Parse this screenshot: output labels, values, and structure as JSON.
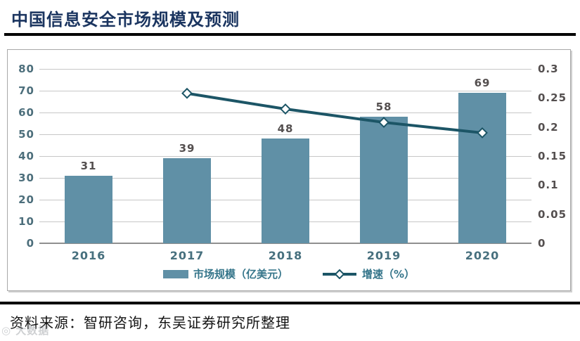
{
  "header": {
    "title": "中国信息安全市场规模及预测"
  },
  "chart_data": {
    "type": "bar+line",
    "categories": [
      "2016",
      "2017",
      "2018",
      "2019",
      "2020"
    ],
    "series": [
      {
        "name": "市场规模（亿美元）",
        "type": "bar",
        "axis": "left",
        "values": [
          31,
          39,
          48,
          58,
          69
        ],
        "data_labels": [
          "31",
          "39",
          "48",
          "58",
          "69"
        ]
      },
      {
        "name": "增速（%）",
        "type": "line",
        "axis": "right",
        "values": [
          null,
          0.258,
          0.231,
          0.208,
          0.19
        ]
      }
    ],
    "left_axis": {
      "min": 0,
      "max": 80,
      "step": 10,
      "ticks": [
        "0",
        "10",
        "20",
        "30",
        "40",
        "50",
        "60",
        "70",
        "80"
      ]
    },
    "right_axis": {
      "min": 0,
      "max": 0.3,
      "step": 0.05,
      "ticks": [
        "0",
        "0.05",
        "0.1",
        "0.15",
        "0.2",
        "0.25",
        "0.3"
      ]
    },
    "title": "",
    "xlabel": "",
    "ylabel": "",
    "grid": true,
    "legend_position": "bottom"
  },
  "colors": {
    "bar_fill": "#6090a6",
    "line_stroke": "#1c5566",
    "marker_fill": "#ffffff",
    "title_text": "#1b3560",
    "axis_text_teal": "#47707e",
    "value_text": "#544f4f",
    "legend_text": "#35758a",
    "gridline": "#c7c7c7",
    "frame_border": "#a8a8a8",
    "rule_black": "#000000"
  },
  "footer": {
    "source": "资料来源：智研咨询，东吴证券研究所整理",
    "watermark": "◎ 大数据"
  }
}
